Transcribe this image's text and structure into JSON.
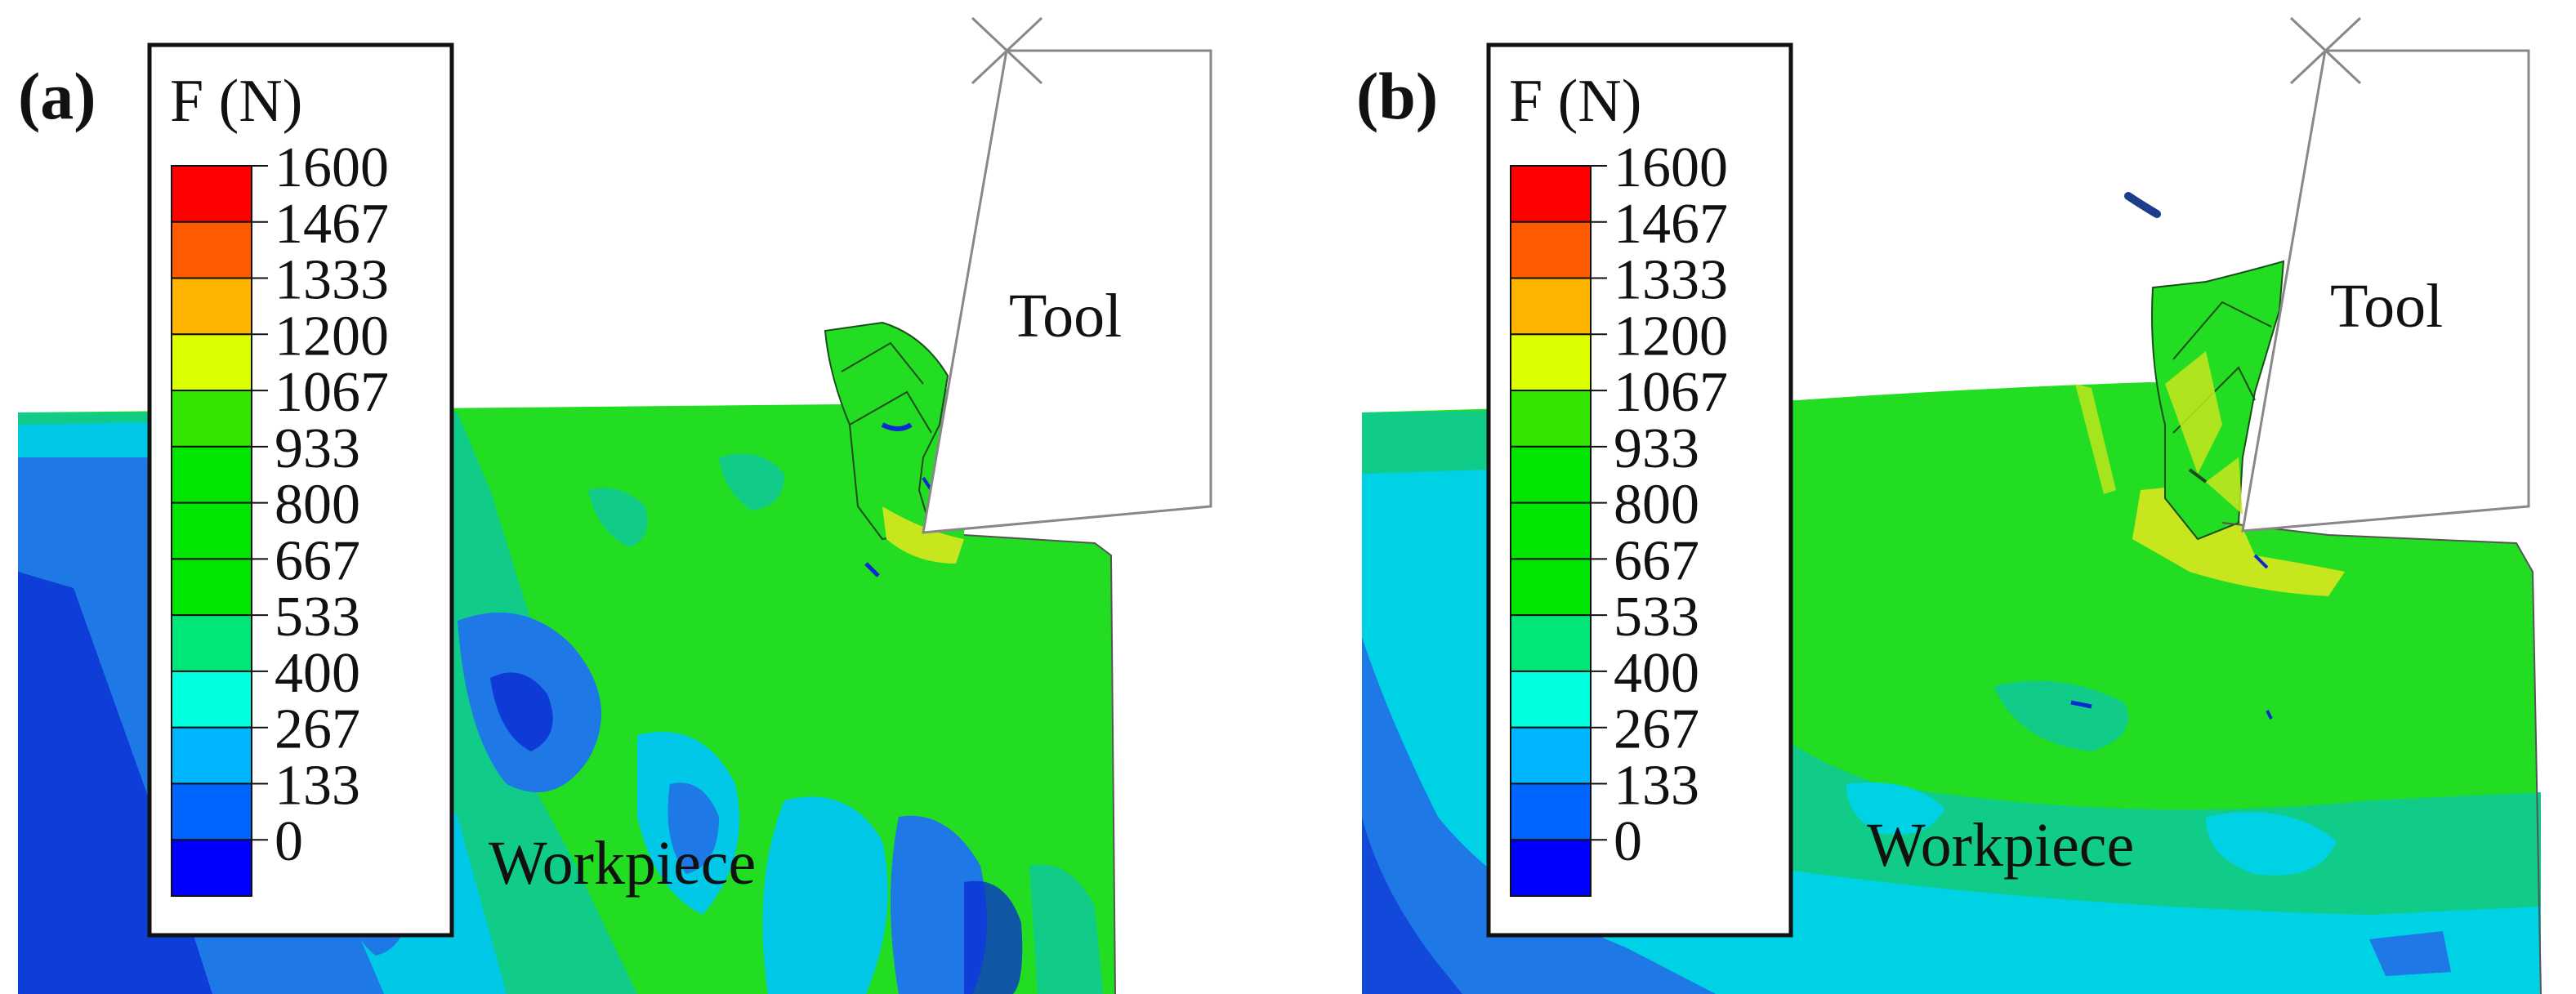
{
  "panels": [
    {
      "id": "a",
      "label": "(a)",
      "legend_title": "F (N)",
      "tool_label": "Tool",
      "workpiece_label": "Workpiece"
    },
    {
      "id": "b",
      "label": "(b)",
      "legend_title": "F (N)",
      "tool_label": "Tool",
      "workpiece_label": "Workpiece"
    }
  ],
  "legend": {
    "ticks": [
      "1600",
      "1467",
      "1333",
      "1200",
      "1067",
      "933",
      "800",
      "667",
      "533",
      "400",
      "267",
      "133",
      "0"
    ],
    "colors": [
      "#ff0000",
      "#ff5a00",
      "#ffb400",
      "#dcff00",
      "#32e600",
      "#00e600",
      "#00e600",
      "#00e600",
      "#00e678",
      "#00ffdc",
      "#00b4ff",
      "#0064ff",
      "#0000ff"
    ]
  },
  "colors": {
    "green": "#22dd22",
    "teal": "#11cc88",
    "cyan": "#00d2e6",
    "blue": "#1e78e6",
    "deep_blue": "#0a2ad2",
    "yellow": "#c8e61e",
    "tool_outline": "#888888"
  }
}
